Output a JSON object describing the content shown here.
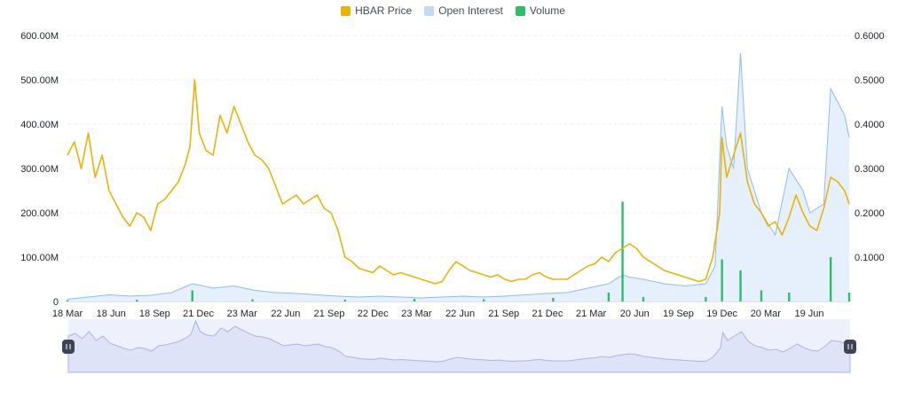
{
  "legend": {
    "price": "HBAR Price",
    "oi": "Open Interest",
    "volume": "Volume"
  },
  "colors": {
    "price": "#e8b30b",
    "oi": "#8cbcf0",
    "oi_fill": "#e6f0fc",
    "volume": "#2ebd6b",
    "grid": "#eaecef",
    "navigator_fill": "#dfe3f8",
    "navigator_line": "#aab4e6",
    "handle": "#3d4454"
  },
  "chart_data": {
    "type": "line",
    "title": "",
    "left_axis": {
      "ticks": [
        "0",
        "100.00M",
        "200.00M",
        "300.00M",
        "400.00M",
        "500.00M",
        "600.00M"
      ],
      "range": [
        0,
        600000000
      ]
    },
    "right_axis": {
      "ticks": [
        "0.1000",
        "0.2000",
        "0.3000",
        "0.4000",
        "0.5000",
        "0.6000"
      ],
      "range": [
        0,
        0.6
      ]
    },
    "x_ticks": [
      "18 Mar",
      "18 Jun",
      "18 Sep",
      "21 Dec",
      "23 Mar",
      "22 Jun",
      "21 Sep",
      "22 Dec",
      "23 Mar",
      "22 Jun",
      "21 Sep",
      "21 Dec",
      "21 Mar",
      "20 Jun",
      "19 Sep",
      "19 Dec",
      "20 Mar",
      "19 Jun"
    ],
    "grid": true,
    "legend_position": "top-center",
    "series": [
      {
        "name": "HBAR Price",
        "axis": "right",
        "kind": "line",
        "points": [
          [
            0,
            0.33
          ],
          [
            3,
            0.36
          ],
          [
            6,
            0.3
          ],
          [
            9,
            0.38
          ],
          [
            12,
            0.28
          ],
          [
            15,
            0.33
          ],
          [
            18,
            0.25
          ],
          [
            21,
            0.22
          ],
          [
            24,
            0.19
          ],
          [
            27,
            0.17
          ],
          [
            30,
            0.2
          ],
          [
            33,
            0.19
          ],
          [
            36,
            0.16
          ],
          [
            39,
            0.22
          ],
          [
            42,
            0.23
          ],
          [
            45,
            0.25
          ],
          [
            48,
            0.27
          ],
          [
            51,
            0.31
          ],
          [
            53,
            0.35
          ],
          [
            55,
            0.5
          ],
          [
            57,
            0.38
          ],
          [
            60,
            0.34
          ],
          [
            63,
            0.33
          ],
          [
            66,
            0.42
          ],
          [
            69,
            0.38
          ],
          [
            72,
            0.44
          ],
          [
            75,
            0.4
          ],
          [
            78,
            0.36
          ],
          [
            81,
            0.33
          ],
          [
            84,
            0.32
          ],
          [
            87,
            0.3
          ],
          [
            90,
            0.26
          ],
          [
            93,
            0.22
          ],
          [
            96,
            0.23
          ],
          [
            99,
            0.24
          ],
          [
            102,
            0.22
          ],
          [
            105,
            0.23
          ],
          [
            108,
            0.24
          ],
          [
            111,
            0.21
          ],
          [
            114,
            0.2
          ],
          [
            117,
            0.16
          ],
          [
            120,
            0.1
          ],
          [
            123,
            0.09
          ],
          [
            126,
            0.075
          ],
          [
            129,
            0.07
          ],
          [
            132,
            0.065
          ],
          [
            135,
            0.08
          ],
          [
            138,
            0.07
          ],
          [
            141,
            0.06
          ],
          [
            144,
            0.065
          ],
          [
            147,
            0.06
          ],
          [
            150,
            0.055
          ],
          [
            153,
            0.05
          ],
          [
            156,
            0.045
          ],
          [
            159,
            0.04
          ],
          [
            162,
            0.045
          ],
          [
            165,
            0.07
          ],
          [
            168,
            0.09
          ],
          [
            171,
            0.08
          ],
          [
            174,
            0.07
          ],
          [
            177,
            0.065
          ],
          [
            180,
            0.06
          ],
          [
            183,
            0.055
          ],
          [
            186,
            0.06
          ],
          [
            189,
            0.05
          ],
          [
            192,
            0.045
          ],
          [
            195,
            0.05
          ],
          [
            198,
            0.05
          ],
          [
            201,
            0.06
          ],
          [
            204,
            0.065
          ],
          [
            207,
            0.055
          ],
          [
            210,
            0.05
          ],
          [
            213,
            0.05
          ],
          [
            216,
            0.05
          ],
          [
            219,
            0.06
          ],
          [
            222,
            0.07
          ],
          [
            225,
            0.08
          ],
          [
            228,
            0.085
          ],
          [
            231,
            0.1
          ],
          [
            234,
            0.09
          ],
          [
            237,
            0.11
          ],
          [
            240,
            0.12
          ],
          [
            243,
            0.13
          ],
          [
            246,
            0.12
          ],
          [
            249,
            0.1
          ],
          [
            252,
            0.09
          ],
          [
            255,
            0.08
          ],
          [
            258,
            0.07
          ],
          [
            261,
            0.065
          ],
          [
            264,
            0.06
          ],
          [
            267,
            0.055
          ],
          [
            270,
            0.05
          ],
          [
            273,
            0.045
          ],
          [
            276,
            0.05
          ],
          [
            279,
            0.1
          ],
          [
            282,
            0.2
          ],
          [
            283,
            0.37
          ],
          [
            285,
            0.28
          ],
          [
            288,
            0.33
          ],
          [
            291,
            0.38
          ],
          [
            294,
            0.27
          ],
          [
            297,
            0.22
          ],
          [
            300,
            0.2
          ],
          [
            303,
            0.17
          ],
          [
            306,
            0.18
          ],
          [
            309,
            0.15
          ],
          [
            312,
            0.19
          ],
          [
            315,
            0.24
          ],
          [
            318,
            0.2
          ],
          [
            321,
            0.17
          ],
          [
            324,
            0.16
          ],
          [
            327,
            0.21
          ],
          [
            330,
            0.28
          ],
          [
            333,
            0.27
          ],
          [
            336,
            0.25
          ],
          [
            338,
            0.22
          ]
        ]
      },
      {
        "name": "Open Interest",
        "axis": "left",
        "kind": "area",
        "points": [
          [
            0,
            5000000
          ],
          [
            9,
            10000000
          ],
          [
            18,
            15000000
          ],
          [
            27,
            12000000
          ],
          [
            36,
            14000000
          ],
          [
            45,
            20000000
          ],
          [
            54,
            40000000
          ],
          [
            63,
            30000000
          ],
          [
            72,
            35000000
          ],
          [
            81,
            25000000
          ],
          [
            90,
            20000000
          ],
          [
            99,
            18000000
          ],
          [
            108,
            15000000
          ],
          [
            117,
            12000000
          ],
          [
            126,
            10000000
          ],
          [
            135,
            12000000
          ],
          [
            144,
            10000000
          ],
          [
            153,
            8000000
          ],
          [
            162,
            10000000
          ],
          [
            171,
            12000000
          ],
          [
            180,
            10000000
          ],
          [
            189,
            12000000
          ],
          [
            198,
            15000000
          ],
          [
            207,
            18000000
          ],
          [
            216,
            20000000
          ],
          [
            225,
            30000000
          ],
          [
            234,
            40000000
          ],
          [
            240,
            60000000
          ],
          [
            243,
            55000000
          ],
          [
            249,
            50000000
          ],
          [
            258,
            40000000
          ],
          [
            267,
            35000000
          ],
          [
            276,
            40000000
          ],
          [
            280,
            80000000
          ],
          [
            283,
            440000000
          ],
          [
            285,
            350000000
          ],
          [
            288,
            300000000
          ],
          [
            291,
            560000000
          ],
          [
            294,
            300000000
          ],
          [
            300,
            200000000
          ],
          [
            306,
            150000000
          ],
          [
            312,
            300000000
          ],
          [
            318,
            250000000
          ],
          [
            321,
            200000000
          ],
          [
            327,
            220000000
          ],
          [
            330,
            480000000
          ],
          [
            333,
            450000000
          ],
          [
            336,
            420000000
          ],
          [
            338,
            370000000
          ]
        ]
      },
      {
        "name": "Volume",
        "axis": "left",
        "kind": "spikes",
        "points": [
          [
            0,
            3000000
          ],
          [
            30,
            4000000
          ],
          [
            54,
            25000000
          ],
          [
            80,
            5000000
          ],
          [
            120,
            4000000
          ],
          [
            150,
            6000000
          ],
          [
            180,
            5000000
          ],
          [
            210,
            8000000
          ],
          [
            234,
            20000000
          ],
          [
            240,
            225000000
          ],
          [
            249,
            10000000
          ],
          [
            276,
            10000000
          ],
          [
            283,
            95000000
          ],
          [
            291,
            70000000
          ],
          [
            300,
            25000000
          ],
          [
            312,
            20000000
          ],
          [
            330,
            100000000
          ],
          [
            338,
            20000000
          ]
        ]
      }
    ]
  }
}
